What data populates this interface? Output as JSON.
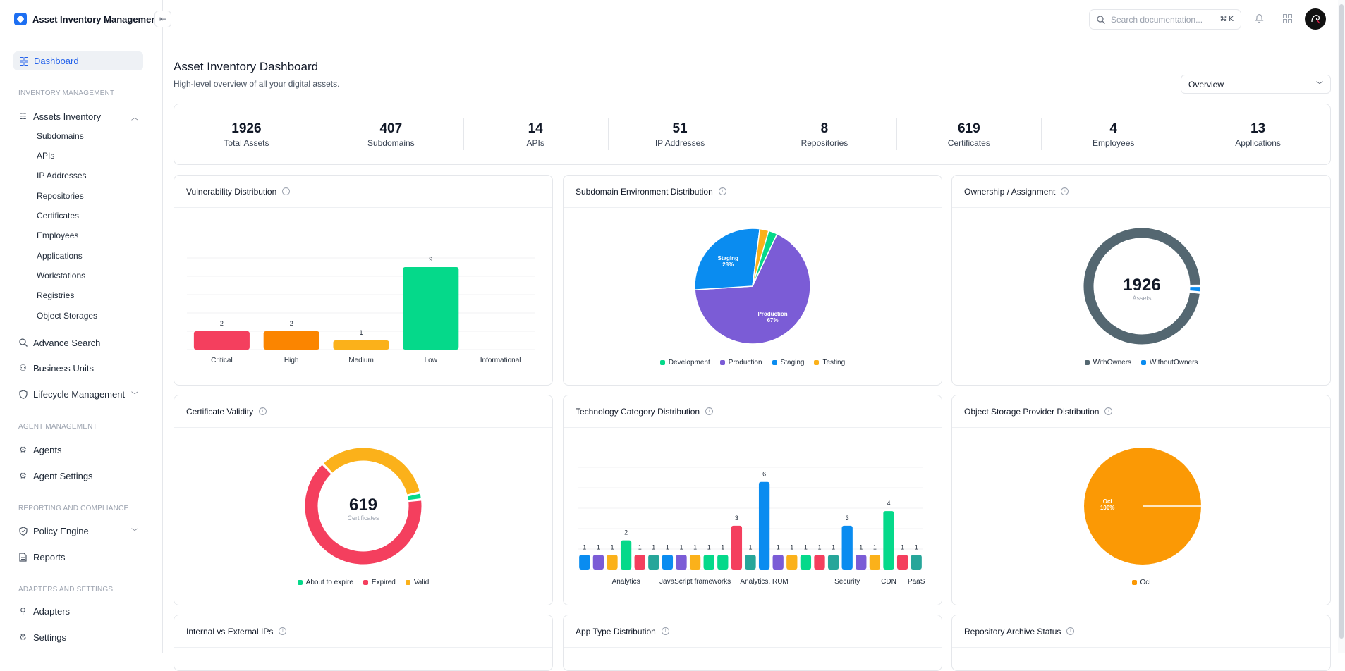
{
  "app": {
    "title": "Asset Inventory Management"
  },
  "sidebar": {
    "dashboard": "Dashboard",
    "sections": {
      "inventory": "INVENTORY MANAGEMENT",
      "agent": "AGENT MANAGEMENT",
      "reporting": "REPORTING AND COMPLIANCE",
      "adapters": "ADAPTERS AND SETTINGS"
    },
    "assets_inventory": "Assets Inventory",
    "sub_items": [
      "Subdomains",
      "APIs",
      "IP Addresses",
      "Repositories",
      "Certificates",
      "Employees",
      "Applications",
      "Workstations",
      "Registries",
      "Object Storages"
    ],
    "advance_search": "Advance Search",
    "business_units": "Business Units",
    "lifecycle": "Lifecycle Management",
    "agents": "Agents",
    "agent_settings": "Agent Settings",
    "policy_engine": "Policy Engine",
    "reports": "Reports",
    "adapters": "Adapters",
    "settings": "Settings"
  },
  "header": {
    "search_placeholder": "Search documentation...",
    "shortcut": "⌘ K"
  },
  "main": {
    "title": "Asset Inventory Dashboard",
    "subtitle": "High-level overview of all your digital assets.",
    "view_select": "Overview"
  },
  "stats": [
    {
      "value": "1926",
      "label": "Total Assets"
    },
    {
      "value": "407",
      "label": "Subdomains"
    },
    {
      "value": "14",
      "label": "APIs"
    },
    {
      "value": "51",
      "label": "IP Addresses"
    },
    {
      "value": "8",
      "label": "Repositories"
    },
    {
      "value": "619",
      "label": "Certificates"
    },
    {
      "value": "4",
      "label": "Employees"
    },
    {
      "value": "13",
      "label": "Applications"
    }
  ],
  "cards": {
    "vuln": "Vulnerability Distribution",
    "subenv": "Subdomain Environment Distribution",
    "ownership": "Ownership / Assignment",
    "cert": "Certificate Validity",
    "tech": "Technology Category Distribution",
    "storage": "Object Storage Provider Distribution",
    "ips": "Internal vs External IPs",
    "apptype": "App Type Distribution",
    "repo": "Repository Archive Status"
  },
  "colors": {
    "red": "#f43f5e",
    "orange": "#fb8500",
    "amber": "#fbb11a",
    "green": "#05d98a",
    "purple": "#7b5cd6",
    "blue": "#0a8cf0",
    "teal": "#27a69a",
    "slate": "#546771",
    "storage": "#fb9905"
  },
  "chart_data": [
    {
      "id": "vuln",
      "type": "bar",
      "title": "Vulnerability Distribution",
      "categories": [
        "Critical",
        "High",
        "Medium",
        "Low",
        "Informational"
      ],
      "values": [
        2,
        2,
        1,
        9,
        0
      ],
      "colors": [
        "#f43f5e",
        "#fb8500",
        "#fbb11a",
        "#05d98a",
        "#9ca3af"
      ],
      "ylim": [
        0,
        10
      ]
    },
    {
      "id": "subenv",
      "type": "pie",
      "title": "Subdomain Environment Distribution",
      "labels": [
        "Development",
        "Production",
        "Staging",
        "Testing"
      ],
      "values": [
        2.5,
        67,
        28,
        2.5
      ],
      "colors": [
        "#05d98a",
        "#7b5cd6",
        "#0a8cf0",
        "#fbb11a"
      ],
      "slice_labels": {
        "Production": "67%",
        "Staging": "28%"
      }
    },
    {
      "id": "ownership",
      "type": "pie",
      "title": "Ownership / Assignment",
      "labels": [
        "WithOwners",
        "WithoutOwners"
      ],
      "values": [
        1890,
        36
      ],
      "colors": [
        "#546771",
        "#0a8cf0"
      ],
      "center_value": "1926",
      "center_label": "Assets"
    },
    {
      "id": "cert",
      "type": "pie",
      "title": "Certificate Validity",
      "labels": [
        "About to expire",
        "Expired",
        "Valid"
      ],
      "values": [
        12,
        400,
        207
      ],
      "colors": [
        "#05d98a",
        "#f43f5e",
        "#fbb11a"
      ],
      "center_value": "619",
      "center_label": "Certificates"
    },
    {
      "id": "tech",
      "type": "bar",
      "title": "Technology Category Distribution",
      "values": [
        1,
        1,
        1,
        2,
        1,
        1,
        1,
        1,
        1,
        1,
        1,
        3,
        1,
        6,
        1,
        1,
        1,
        1,
        1,
        3,
        1,
        1,
        4,
        1,
        1
      ],
      "colors": [
        "#0a8cf0",
        "#7b5cd6",
        "#fbb11a",
        "#05d98a",
        "#f43f5e",
        "#27a69a",
        "#0a8cf0",
        "#7b5cd6",
        "#fbb11a",
        "#05d98a",
        "#05d98a",
        "#f43f5e",
        "#27a69a",
        "#0a8cf0",
        "#7b5cd6",
        "#fbb11a",
        "#05d98a",
        "#f43f5e",
        "#27a69a",
        "#0a8cf0",
        "#7b5cd6",
        "#fbb11a",
        "#05d98a",
        "#f43f5e",
        "#27a69a"
      ],
      "tick_labels": [
        {
          "index": 3,
          "label": "Analytics"
        },
        {
          "index": 8,
          "label": "JavaScript frameworks"
        },
        {
          "index": 13,
          "label": "Analytics, RUM"
        },
        {
          "index": 19,
          "label": "Security"
        },
        {
          "index": 22,
          "label": "CDN"
        },
        {
          "index": 24,
          "label": "PaaS"
        }
      ],
      "ylim": [
        0,
        7
      ]
    },
    {
      "id": "storage",
      "type": "pie",
      "title": "Object Storage Provider Distribution",
      "labels": [
        "Oci"
      ],
      "values": [
        100
      ],
      "colors": [
        "#fb9905"
      ],
      "slice_labels": {
        "Oci": "100%"
      }
    }
  ]
}
